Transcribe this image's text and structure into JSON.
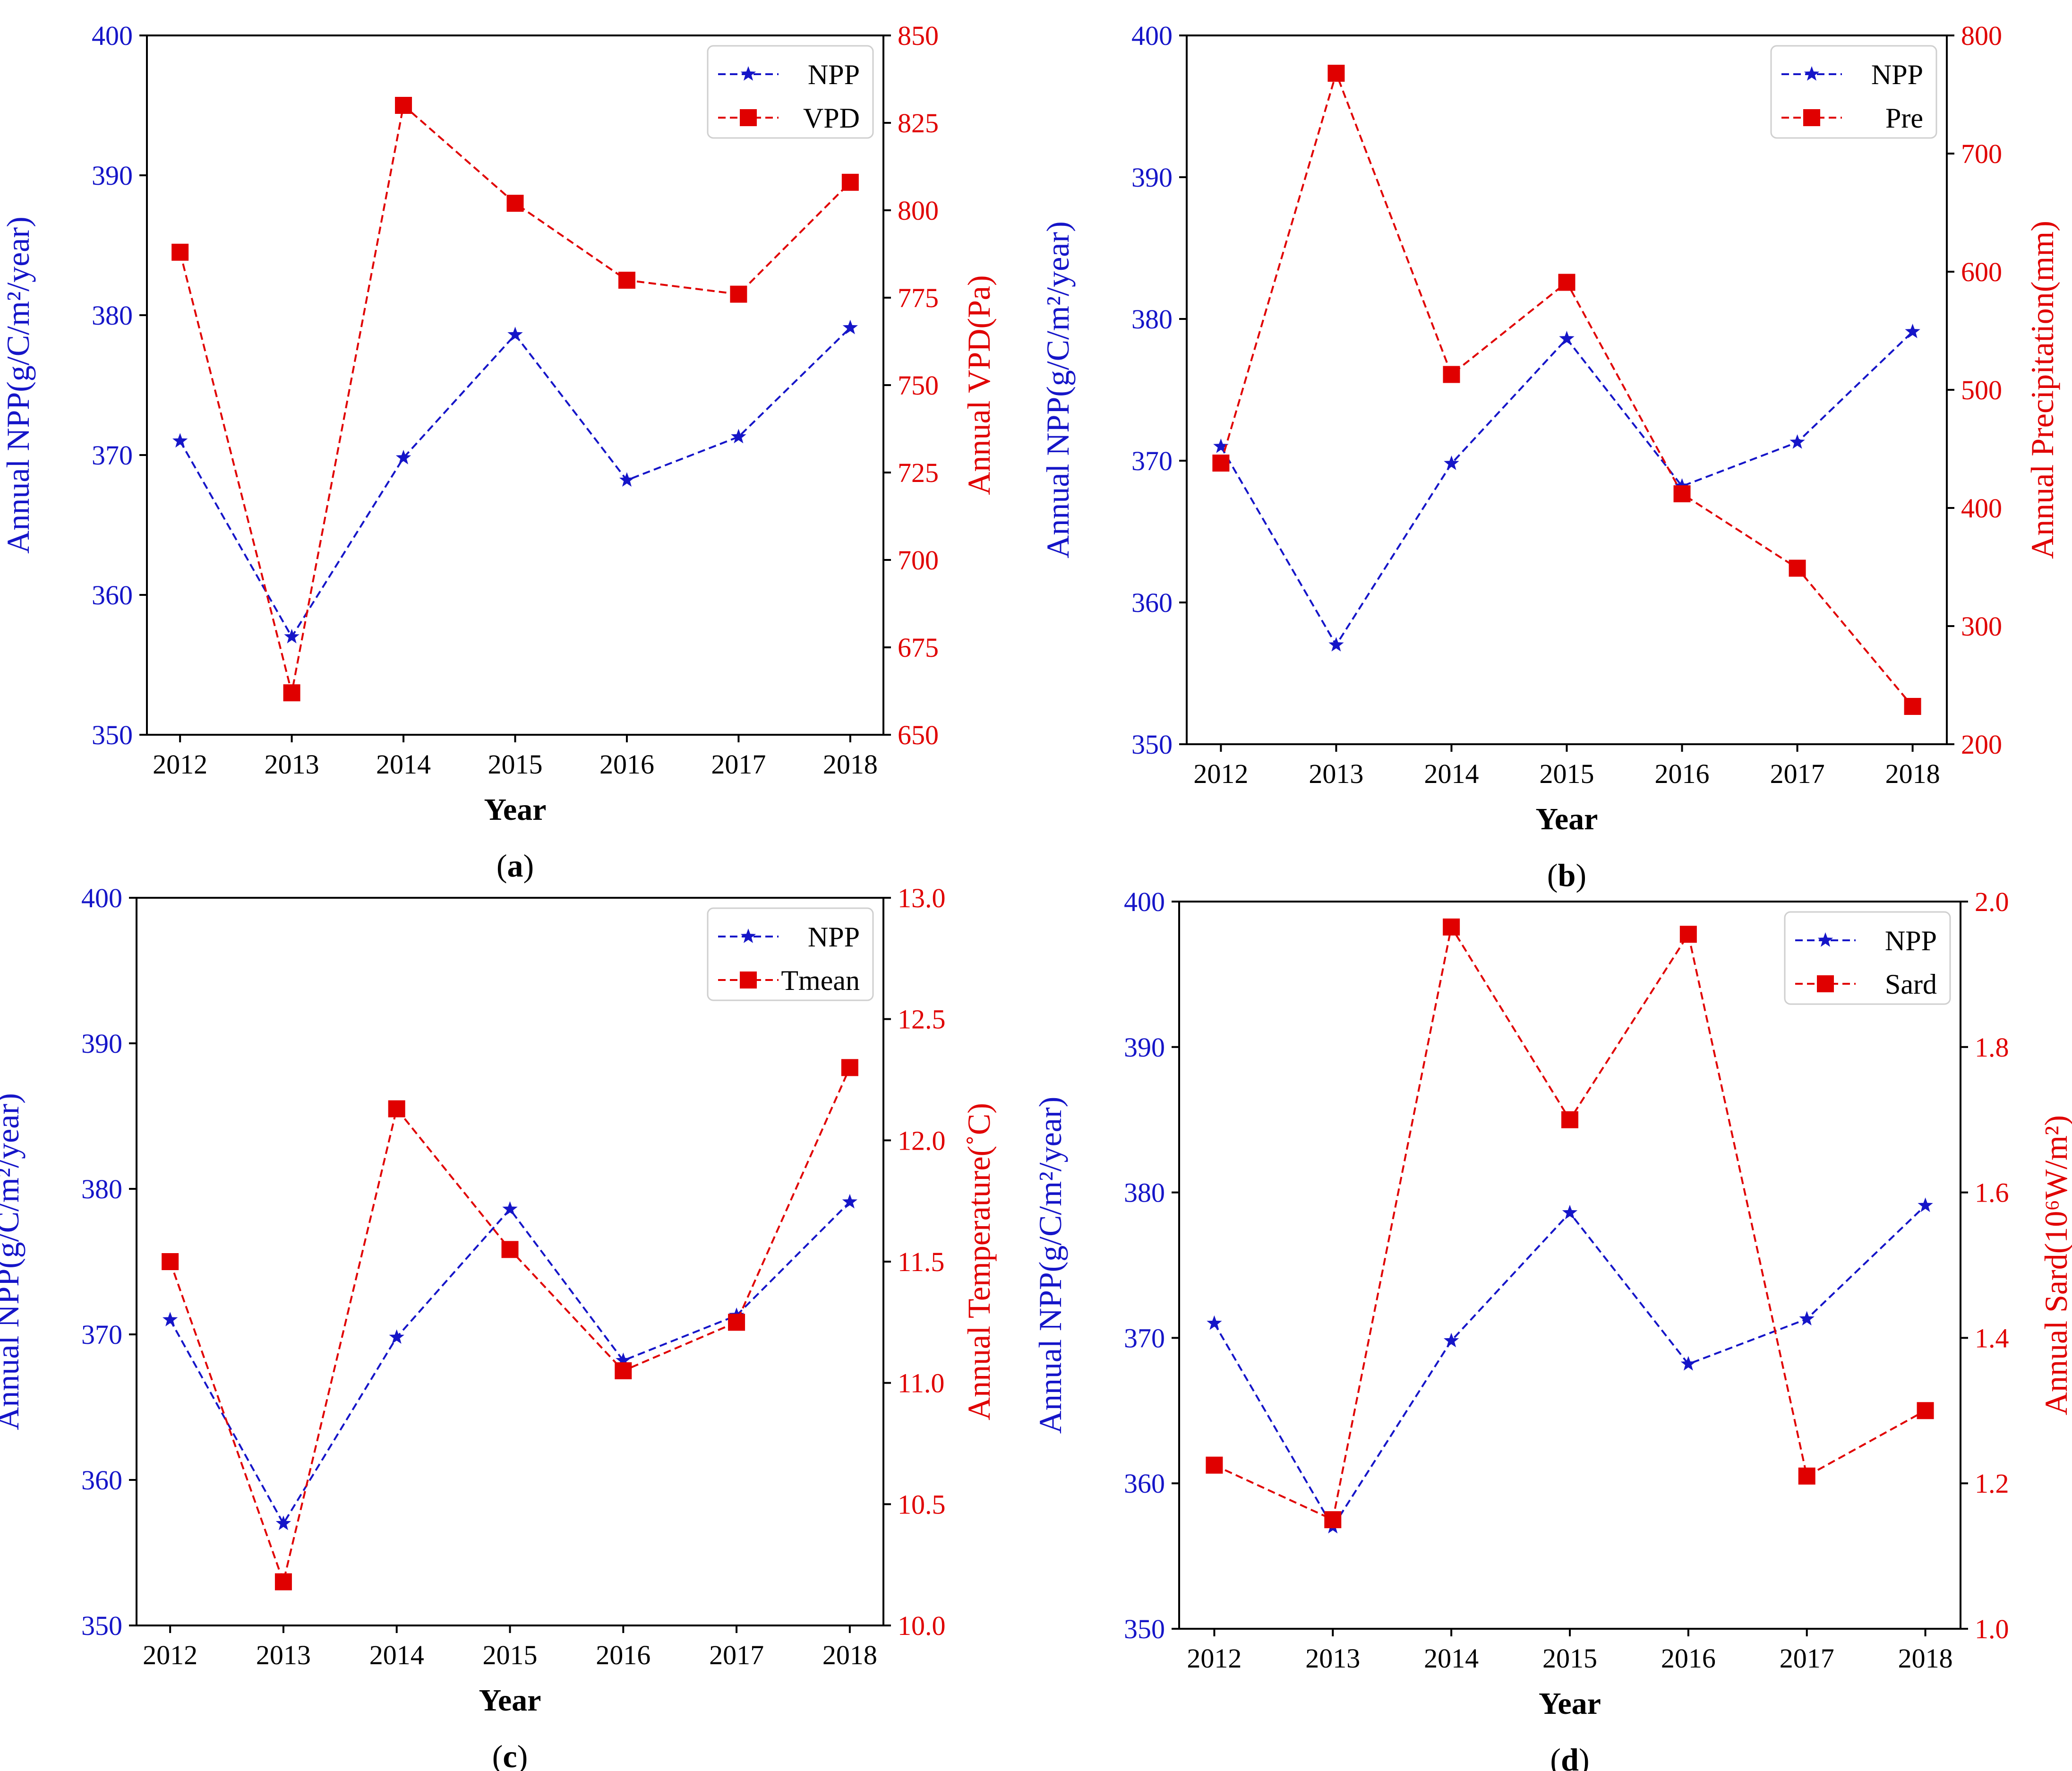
{
  "colors": {
    "npp": "#1515c8",
    "other": "#e00000",
    "axis": "#000000",
    "legend_border": "#cfcfcf"
  },
  "icons": {
    "npp_marker": "star-marker-icon",
    "other_marker": "square-marker-icon"
  },
  "chart_data": [
    {
      "id": "a",
      "type": "line",
      "caption_letter": "a",
      "categories": [
        "2012",
        "2013",
        "2014",
        "2015",
        "2016",
        "2017",
        "2018"
      ],
      "xlabel": "Year",
      "ylabel_left": "Annual NPP(g/C/m²/year)",
      "ylabel_right": "Annual VPD(Pa)",
      "ylim_left": [
        350,
        400
      ],
      "yticks_left": [
        "350",
        "360",
        "370",
        "380",
        "390",
        "400"
      ],
      "ylim_right": [
        650,
        850
      ],
      "yticks_right": [
        "650",
        "675",
        "700",
        "725",
        "750",
        "775",
        "800",
        "825",
        "850"
      ],
      "series": [
        {
          "name": "NPP",
          "axis": "left",
          "values": [
            371.0,
            357.0,
            369.8,
            378.6,
            368.2,
            371.3,
            379.1
          ]
        },
        {
          "name": "VPD",
          "axis": "right",
          "values": [
            788,
            662,
            830,
            802,
            780,
            776,
            808
          ]
        }
      ],
      "legend": "top-right"
    },
    {
      "id": "b",
      "type": "line",
      "caption_letter": "b",
      "categories": [
        "2012",
        "2013",
        "2014",
        "2015",
        "2016",
        "2017",
        "2018"
      ],
      "xlabel": "Year",
      "ylabel_left": "Annual NPP(g/C/m²/year)",
      "ylabel_right": "Annual Precipitation(mm)",
      "ylim_left": [
        350,
        400
      ],
      "yticks_left": [
        "350",
        "360",
        "370",
        "380",
        "390",
        "400"
      ],
      "ylim_right": [
        200,
        800
      ],
      "yticks_right": [
        "200",
        "300",
        "400",
        "500",
        "600",
        "700",
        "800"
      ],
      "series": [
        {
          "name": "NPP",
          "axis": "left",
          "values": [
            371.0,
            357.0,
            369.8,
            378.6,
            368.2,
            371.3,
            379.1
          ]
        },
        {
          "name": "Pre",
          "axis": "right",
          "values": [
            438,
            768,
            513,
            591,
            412,
            349,
            232
          ]
        }
      ],
      "legend": "top-right"
    },
    {
      "id": "c",
      "type": "line",
      "caption_letter": "c",
      "categories": [
        "2012",
        "2013",
        "2014",
        "2015",
        "2016",
        "2017",
        "2018"
      ],
      "xlabel": "Year",
      "ylabel_left": "Annual NPP(g/C/m²/year)",
      "ylabel_right": "Annual Temperature(˚C)",
      "ylim_left": [
        350,
        400
      ],
      "yticks_left": [
        "350",
        "360",
        "370",
        "380",
        "390",
        "400"
      ],
      "ylim_right": [
        10.0,
        13.0
      ],
      "yticks_right": [
        "10.0",
        "10.5",
        "11.0",
        "11.5",
        "12.0",
        "12.5",
        "13.0"
      ],
      "series": [
        {
          "name": "NPP",
          "axis": "left",
          "values": [
            371.0,
            357.0,
            369.8,
            378.6,
            368.2,
            371.3,
            379.1
          ]
        },
        {
          "name": "Tmean",
          "axis": "right",
          "values": [
            11.5,
            10.18,
            12.13,
            11.55,
            11.05,
            11.25,
            12.3
          ]
        }
      ],
      "legend": "top-right"
    },
    {
      "id": "d",
      "type": "line",
      "caption_letter": "d",
      "categories": [
        "2012",
        "2013",
        "2014",
        "2015",
        "2016",
        "2017",
        "2018"
      ],
      "xlabel": "Year",
      "ylabel_left": "Annual NPP(g/C/m²/year)",
      "ylabel_right": "Annual Sard(10⁶W/m²)",
      "ylim_left": [
        350,
        400
      ],
      "yticks_left": [
        "350",
        "360",
        "370",
        "380",
        "390",
        "400"
      ],
      "ylim_right": [
        1.0,
        2.0
      ],
      "yticks_right": [
        "1.0",
        "1.2",
        "1.4",
        "1.6",
        "1.8",
        "2.0"
      ],
      "series": [
        {
          "name": "NPP",
          "axis": "left",
          "values": [
            371.0,
            357.0,
            369.8,
            378.6,
            368.2,
            371.3,
            379.1
          ]
        },
        {
          "name": "Sard",
          "axis": "right",
          "values": [
            1.225,
            1.15,
            1.965,
            1.7,
            1.955,
            1.21,
            1.3
          ]
        }
      ],
      "legend": "top-right"
    }
  ]
}
